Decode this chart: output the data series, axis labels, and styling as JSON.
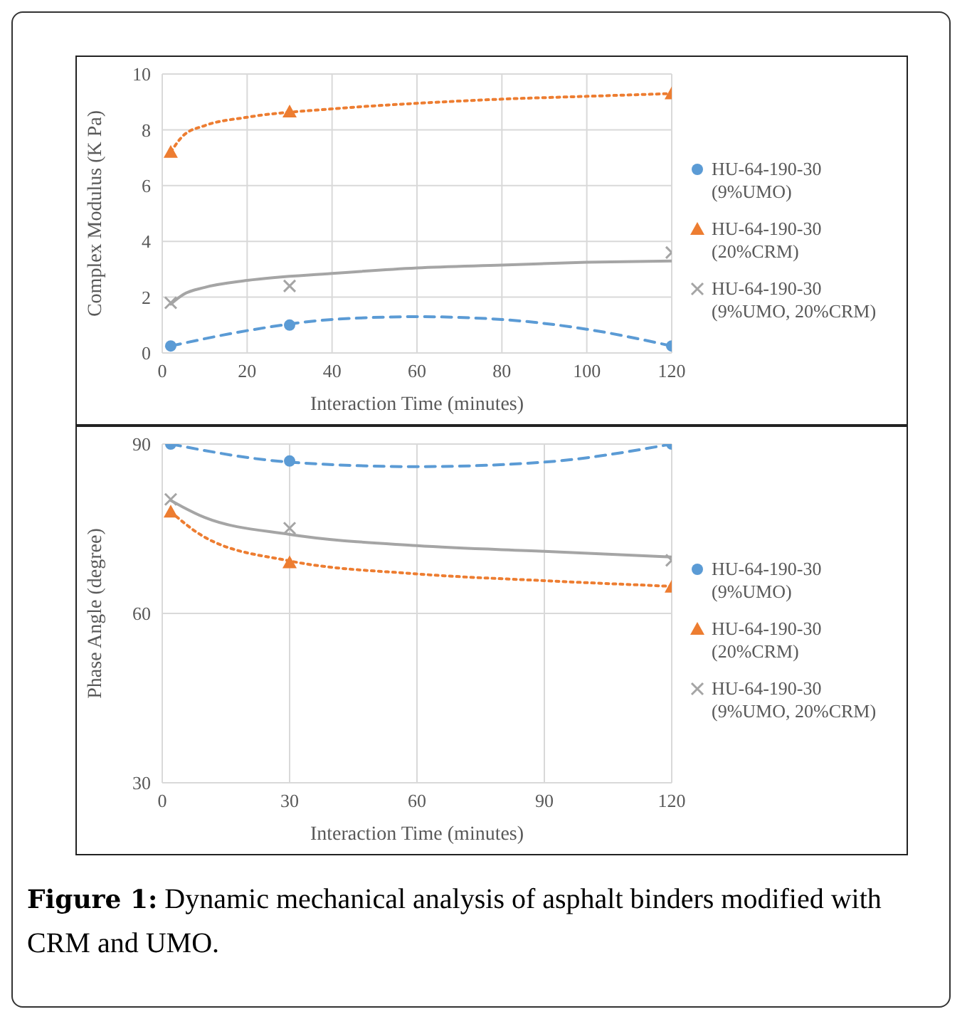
{
  "chart_data": [
    {
      "type": "scatter",
      "xlabel": "Interaction Time (minutes)",
      "ylabel": "Complex Modulus (K Pa)",
      "xlim": [
        0,
        120
      ],
      "xticks": [
        0,
        20,
        40,
        60,
        80,
        100,
        120
      ],
      "ylim": [
        0,
        10
      ],
      "yticks": [
        0,
        2,
        4,
        6,
        8,
        10
      ],
      "grid": true,
      "legend": "right",
      "series": [
        {
          "name": "HU-64-190-30 (9%UMO)",
          "color": "#5b9bd5",
          "marker": "circle",
          "x": [
            2,
            30,
            120
          ],
          "values": [
            0.25,
            1.0,
            0.25
          ]
        },
        {
          "name": "HU-64-190-30 (20%CRM)",
          "color": "#ed7d31",
          "marker": "triangle",
          "x": [
            2,
            30,
            120
          ],
          "values": [
            7.2,
            8.65,
            9.3
          ]
        },
        {
          "name": "HU-64-190-30 (9%UMO, 20%CRM)",
          "color": "#a5a5a5",
          "marker": "cross",
          "x": [
            2,
            30,
            120
          ],
          "values": [
            1.8,
            2.4,
            3.6
          ]
        },
        {
          "type": "line",
          "color": "#5b9bd5",
          "line_style": "dashed",
          "marker": "none",
          "x": [
            2,
            20,
            40,
            60,
            80,
            100,
            120
          ],
          "values": [
            0.25,
            0.8,
            1.2,
            1.3,
            1.2,
            0.85,
            0.25
          ]
        },
        {
          "type": "line",
          "color": "#ed7d31",
          "line_style": "dotted",
          "marker": "none",
          "x": [
            2,
            5,
            10,
            20,
            40,
            60,
            80,
            100,
            120
          ],
          "values": [
            7.2,
            7.8,
            8.15,
            8.45,
            8.75,
            8.95,
            9.1,
            9.2,
            9.3
          ]
        },
        {
          "type": "line",
          "color": "#a5a5a5",
          "line_style": "solid",
          "marker": "none",
          "x": [
            2,
            5,
            10,
            20,
            40,
            60,
            80,
            100,
            120
          ],
          "values": [
            1.75,
            2.1,
            2.35,
            2.6,
            2.85,
            3.05,
            3.15,
            3.25,
            3.3
          ]
        }
      ]
    },
    {
      "type": "scatter",
      "xlabel": "Interaction Time (minutes)",
      "ylabel": "Phase Angle (degree)",
      "xlim": [
        0,
        120
      ],
      "xticks": [
        0,
        30,
        60,
        90,
        120
      ],
      "ylim": [
        30,
        90
      ],
      "yticks": [
        30,
        60,
        90
      ],
      "grid": true,
      "legend": "right",
      "annotations": [
        "Figure 1: Dynamic mechanical analysis of asphalt binders modified with CRM and UMO."
      ],
      "series": [
        {
          "name": "HU-64-190-30 (9%UMO)",
          "color": "#5b9bd5",
          "marker": "circle",
          "x": [
            2,
            30,
            120
          ],
          "values": [
            90,
            87,
            90
          ]
        },
        {
          "name": "HU-64-190-30 (20%CRM)",
          "color": "#ed7d31",
          "marker": "triangle",
          "x": [
            2,
            30,
            120
          ],
          "values": [
            78,
            69,
            64.7
          ]
        },
        {
          "name": "HU-64-190-30 (9%UMO, 20%CRM)",
          "color": "#a5a5a5",
          "marker": "cross",
          "x": [
            2,
            30,
            120
          ],
          "values": [
            80.2,
            75.1,
            69.4
          ]
        },
        {
          "type": "line",
          "color": "#5b9bd5",
          "line_style": "dashed",
          "marker": "none",
          "x": [
            2,
            30,
            60,
            90,
            120
          ],
          "values": [
            90,
            86.8,
            86,
            86.8,
            90
          ]
        },
        {
          "type": "line",
          "color": "#ed7d31",
          "line_style": "dotted",
          "marker": "none",
          "x": [
            2,
            10,
            30,
            60,
            90,
            120
          ],
          "values": [
            78,
            73.5,
            69.3,
            67,
            65.8,
            64.8
          ]
        },
        {
          "type": "line",
          "color": "#a5a5a5",
          "line_style": "solid",
          "marker": "none",
          "x": [
            2,
            10,
            30,
            60,
            90,
            120
          ],
          "values": [
            80,
            77,
            74,
            72,
            71,
            70
          ]
        }
      ]
    }
  ]
}
